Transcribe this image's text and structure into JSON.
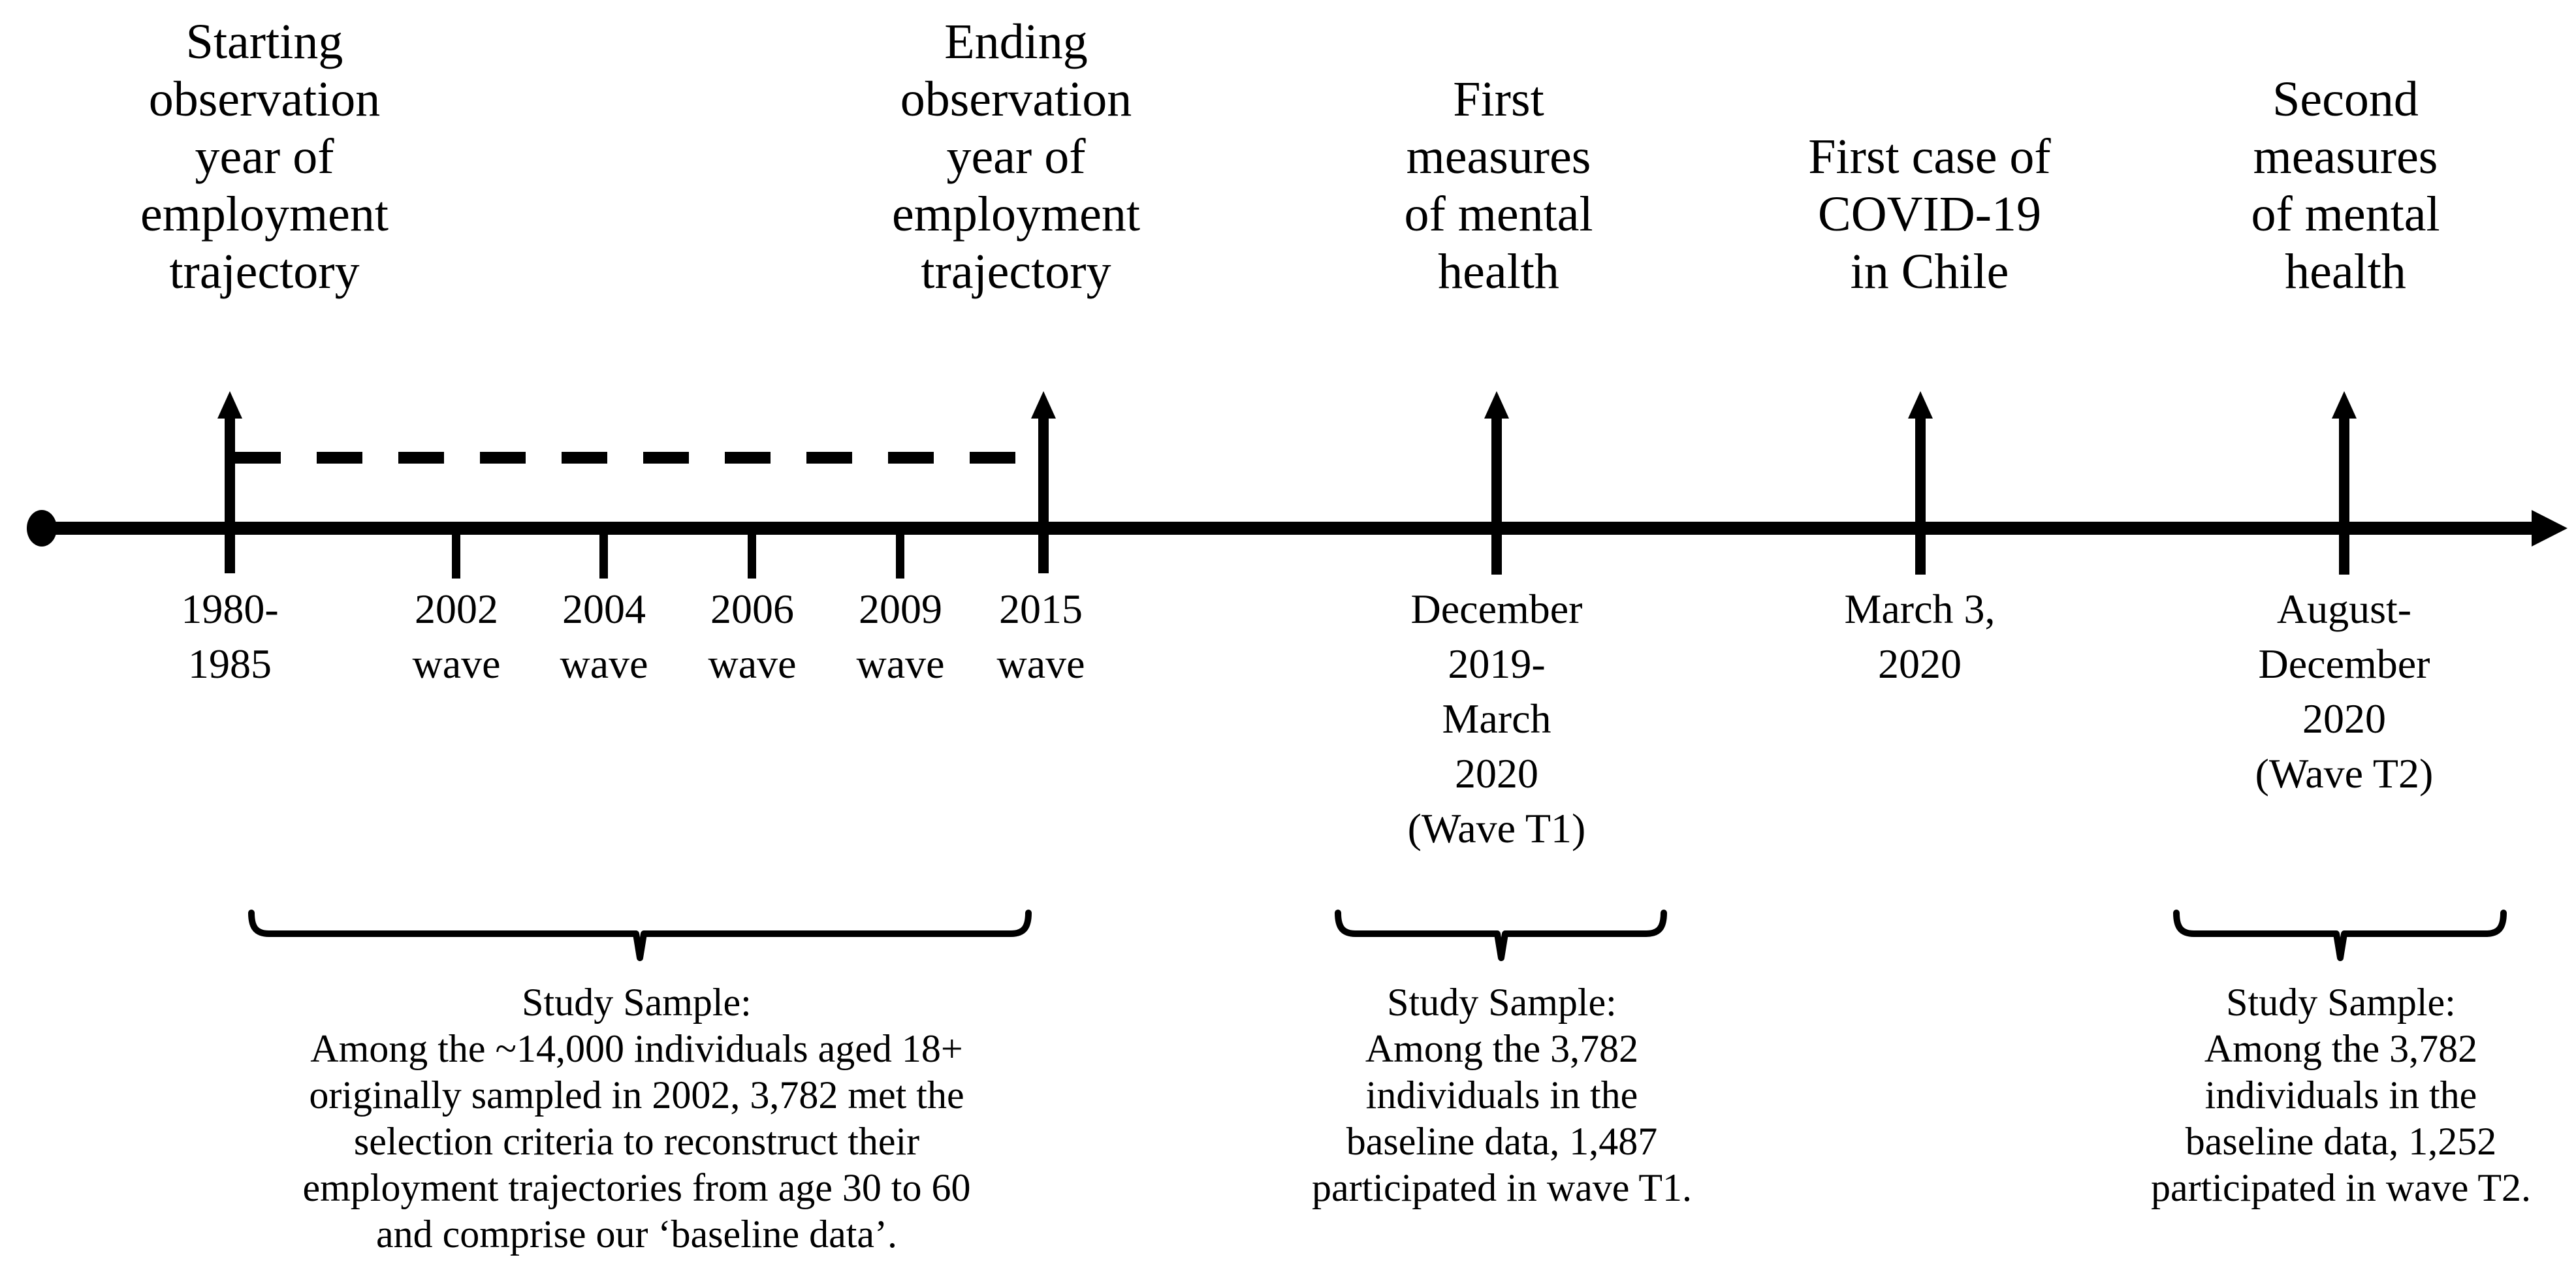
{
  "figure": {
    "ink_color": "#000000",
    "background_color": "#ffffff"
  },
  "top_annotations": [
    {
      "id": "starting-observation",
      "lines": [
        "Starting",
        "observation",
        "year of",
        "employment",
        "trajectory"
      ]
    },
    {
      "id": "ending-observation",
      "lines": [
        "Ending",
        "observation",
        "year of",
        "employment",
        "trajectory"
      ]
    },
    {
      "id": "first-measures",
      "lines": [
        "First",
        "measures",
        "of mental",
        "health"
      ]
    },
    {
      "id": "first-covid-case",
      "lines": [
        "First case of",
        "COVID-19",
        "in Chile"
      ]
    },
    {
      "id": "second-measures",
      "lines": [
        "Second",
        "measures",
        "of mental",
        "health"
      ]
    }
  ],
  "timeline_points": [
    {
      "id": "start-1980-1985",
      "marker": "up-arrow",
      "lines": [
        "1980-",
        "1985"
      ]
    },
    {
      "id": "wave-2002",
      "marker": "tick",
      "lines": [
        "2002",
        "wave"
      ]
    },
    {
      "id": "wave-2004",
      "marker": "tick",
      "lines": [
        "2004",
        "wave"
      ]
    },
    {
      "id": "wave-2006",
      "marker": "tick",
      "lines": [
        "2006",
        "wave"
      ]
    },
    {
      "id": "wave-2009",
      "marker": "tick",
      "lines": [
        "2009",
        "wave"
      ]
    },
    {
      "id": "wave-2015",
      "marker": "up-arrow",
      "lines": [
        "2015",
        "wave"
      ]
    },
    {
      "id": "wave-t1",
      "marker": "up-arrow",
      "lines": [
        "December",
        "2019-",
        "March",
        "2020",
        "(Wave T1)"
      ]
    },
    {
      "id": "covid-chile",
      "marker": "up-arrow",
      "lines": [
        "March 3,",
        "2020"
      ]
    },
    {
      "id": "wave-t2",
      "marker": "up-arrow",
      "lines": [
        "August-",
        "December",
        "2020",
        "(Wave T2)"
      ]
    }
  ],
  "sample_notes": [
    {
      "id": "baseline-note",
      "lines": [
        "Study Sample:",
        "Among the ~14,000 individuals aged 18+",
        "originally sampled in 2002, 3,782 met the",
        "selection criteria to reconstruct their",
        "employment trajectories from age 30 to 60",
        "and comprise our ‘baseline data’."
      ]
    },
    {
      "id": "t1-note",
      "lines": [
        "Study Sample:",
        "Among the 3,782",
        "individuals in the",
        "baseline data, 1,487",
        "participated in wave T1."
      ]
    },
    {
      "id": "t2-note",
      "lines": [
        "Study Sample:",
        "Among the 3,782",
        "individuals in the",
        "baseline data, 1,252",
        "participated in wave T2."
      ]
    }
  ]
}
